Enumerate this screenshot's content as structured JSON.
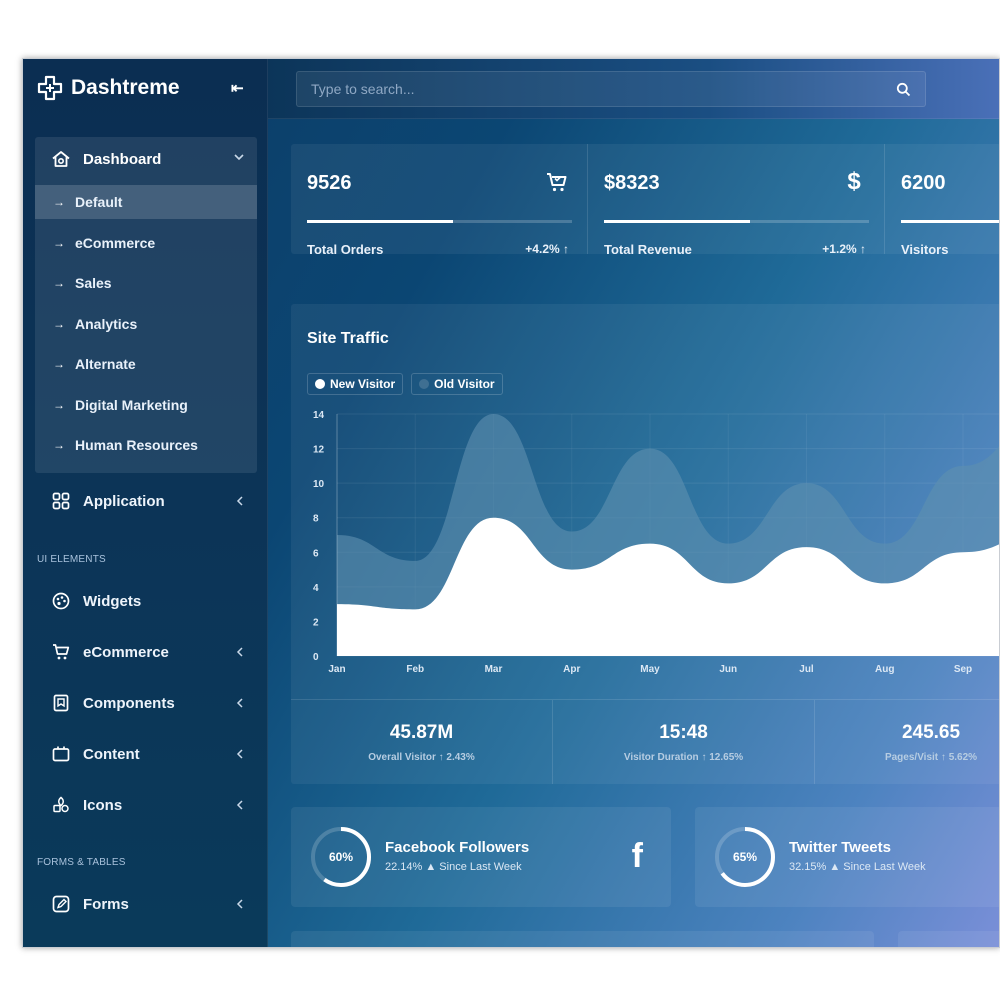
{
  "brand": {
    "name": "Dashtreme",
    "icon": "plus-logo-icon",
    "collapse_icon": "collapse-left-icon"
  },
  "search": {
    "placeholder": "Type to search...",
    "icon": "search-icon"
  },
  "sidebar": {
    "dashboard": {
      "label": "Dashboard",
      "icon": "home-icon",
      "items": [
        {
          "label": "Default",
          "active": true
        },
        {
          "label": "eCommerce"
        },
        {
          "label": "Sales"
        },
        {
          "label": "Analytics"
        },
        {
          "label": "Alternate"
        },
        {
          "label": "Digital Marketing"
        },
        {
          "label": "Human Resources"
        }
      ]
    },
    "application": {
      "label": "Application",
      "icon": "grid-icon"
    },
    "ui_elements_title": "UI ELEMENTS",
    "ui_items": [
      {
        "label": "Widgets",
        "icon": "palette-icon",
        "chevron": false
      },
      {
        "label": "eCommerce",
        "icon": "cart-icon",
        "chevron": true
      },
      {
        "label": "Components",
        "icon": "bookmark-icon",
        "chevron": true
      },
      {
        "label": "Content",
        "icon": "content-box-icon",
        "chevron": true
      },
      {
        "label": "Icons",
        "icon": "icons-icon",
        "chevron": true
      }
    ],
    "forms_tables_title": "FORMS & TABLES",
    "forms": {
      "label": "Forms",
      "icon": "edit-icon"
    }
  },
  "stats": [
    {
      "value": "9526",
      "label": "Total Orders",
      "change": "+4.2% ↑",
      "icon": "cart-icon",
      "progress": 0.55
    },
    {
      "value": "$8323",
      "label": "Total Revenue",
      "change": "+1.2% ↑",
      "icon": "dollar-icon",
      "progress": 0.55
    },
    {
      "value": "6200",
      "label": "Visitors",
      "change": "",
      "icon": "",
      "progress": 0.55
    }
  ],
  "traffic": {
    "title": "Site Traffic",
    "legend": [
      {
        "label": "New Visitor",
        "color": "#ffffff"
      },
      {
        "label": "Old Visitor",
        "color": "#4f7f9f"
      }
    ],
    "stats": [
      {
        "value": "45.87M",
        "caption": "Overall Visitor ↑ 2.43%"
      },
      {
        "value": "15:48",
        "caption": "Visitor Duration ↑ 12.65%"
      },
      {
        "value": "245.65",
        "caption": "Pages/Visit ↑ 5.62%"
      }
    ]
  },
  "chart_data": {
    "type": "area",
    "x": [
      "Jan",
      "Feb",
      "Mar",
      "Apr",
      "May",
      "Jun",
      "Jul",
      "Aug",
      "Sep"
    ],
    "series": [
      {
        "name": "New Visitor",
        "values": [
          3,
          2.7,
          8,
          5,
          6.5,
          4.2,
          6.3,
          4.2,
          6
        ],
        "color": "#ffffff"
      },
      {
        "name": "Old Visitor",
        "values": [
          7,
          5.5,
          14,
          7.2,
          12,
          6.5,
          10,
          6.5,
          11
        ],
        "color": "#5e8fb0"
      }
    ],
    "ylim": [
      0,
      14
    ],
    "yticks": [
      0,
      2,
      4,
      6,
      8,
      10,
      12,
      14
    ],
    "grid": true
  },
  "social": [
    {
      "title": "Facebook Followers",
      "subtitle": "22.14% ▲ Since Last Week",
      "percent": 0.6,
      "percent_label": "60%",
      "icon": "facebook-icon",
      "glyph": "f"
    },
    {
      "title": "Twitter Tweets",
      "subtitle": "32.15% ▲ Since Last Week",
      "percent": 0.65,
      "percent_label": "65%",
      "icon": "twitter-icon",
      "glyph": ""
    }
  ]
}
